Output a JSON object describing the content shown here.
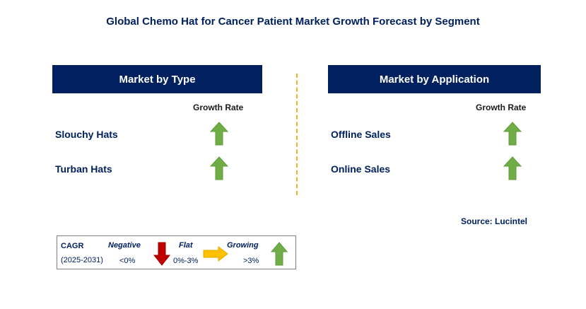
{
  "title": "Global Chemo Hat for Cancer Patient Market Growth Forecast by Segment",
  "type_panel": {
    "header": "Market by Type",
    "column_label": "Growth Rate",
    "rows": [
      {
        "label": "Slouchy Hats",
        "trend": "growing"
      },
      {
        "label": "Turban Hats",
        "trend": "growing"
      }
    ]
  },
  "application_panel": {
    "header": "Market by Application",
    "column_label": "Growth Rate",
    "rows": [
      {
        "label": "Offline Sales",
        "trend": "growing"
      },
      {
        "label": "Online Sales",
        "trend": "growing"
      }
    ]
  },
  "source": "Source: Lucintel",
  "legend": {
    "cagr_label": "CAGR",
    "period": "(2025-2031)",
    "negative": {
      "label": "Negative",
      "range": "<0%",
      "icon": "down-arrow-icon",
      "color": "#c00000"
    },
    "flat": {
      "label": "Flat",
      "range": "0%-3%",
      "icon": "right-arrow-icon",
      "color": "#ffc000"
    },
    "growing": {
      "label": "Growing",
      "range": ">3%",
      "icon": "up-arrow-icon",
      "color": "#70ad47"
    }
  },
  "colors": {
    "header_bg": "#002060",
    "growing": "#70ad47",
    "divider": "#f2b022"
  }
}
